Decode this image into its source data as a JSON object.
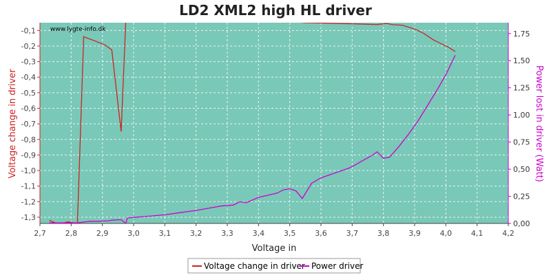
{
  "chart_data": {
    "type": "line",
    "title": "LD2 XML2 high HL driver",
    "watermark": "www.lygte-info.dk",
    "xlabel": "Voltage in",
    "ylabel_left": "Voltage change in driver",
    "ylabel_right": "Power lost in driver (Watt)",
    "xlim": [
      2.7,
      4.2
    ],
    "ylim_left": [
      -1.34,
      -0.05
    ],
    "ylim_right": [
      0.0,
      1.85
    ],
    "x_ticks": [
      "2,7",
      "2,8",
      "2,9",
      "3,0",
      "3,1",
      "3,2",
      "3,3",
      "3,4",
      "3,5",
      "3,6",
      "3,7",
      "3,8",
      "3,9",
      "4,0",
      "4,1",
      "4,2"
    ],
    "y_left_ticks": [
      "-0,1",
      "-0,2",
      "-0,3",
      "-0,4",
      "-0,5",
      "-0,6",
      "-0,7",
      "-0,8",
      "-0,9",
      "-1,0",
      "-1,1",
      "-1,2",
      "-1,3"
    ],
    "y_right_ticks": [
      "0,00",
      "0,25",
      "0,50",
      "0,75",
      "1,00",
      "1,25",
      "1,50",
      "1,75"
    ],
    "grid": true,
    "legend_placement": "bottom-center",
    "background": "#7ac8b8",
    "colors": {
      "left_axis": "#cc2222",
      "right_axis": "#cc00cc",
      "grid": "#ffffff"
    },
    "series": [
      {
        "name": "Voltage change in driver",
        "axis": "left",
        "color": "#cc2222",
        "points": [
          [
            2.73,
            -1.32
          ],
          [
            2.76,
            -1.345
          ],
          [
            2.79,
            -1.33
          ],
          [
            2.82,
            -1.34
          ],
          [
            2.84,
            -0.14
          ],
          [
            2.88,
            -0.17
          ],
          [
            2.91,
            -0.195
          ],
          [
            2.93,
            -0.225
          ],
          [
            2.96,
            -0.75
          ],
          [
            2.975,
            -0.03
          ],
          [
            3.0,
            -0.03
          ],
          [
            3.05,
            -0.032
          ],
          [
            3.1,
            -0.033
          ],
          [
            3.15,
            -0.034
          ],
          [
            3.2,
            -0.037
          ],
          [
            3.25,
            -0.038
          ],
          [
            3.3,
            -0.04
          ],
          [
            3.35,
            -0.042
          ],
          [
            3.4,
            -0.044
          ],
          [
            3.45,
            -0.046
          ],
          [
            3.48,
            -0.048
          ],
          [
            3.5,
            -0.048
          ],
          [
            3.52,
            -0.045
          ],
          [
            3.55,
            -0.05
          ],
          [
            3.6,
            -0.052
          ],
          [
            3.65,
            -0.055
          ],
          [
            3.7,
            -0.057
          ],
          [
            3.75,
            -0.06
          ],
          [
            3.78,
            -0.062
          ],
          [
            3.81,
            -0.055
          ],
          [
            3.83,
            -0.063
          ],
          [
            3.86,
            -0.066
          ],
          [
            3.9,
            -0.09
          ],
          [
            3.93,
            -0.12
          ],
          [
            3.96,
            -0.16
          ],
          [
            3.99,
            -0.19
          ],
          [
            4.01,
            -0.21
          ],
          [
            4.03,
            -0.235
          ]
        ]
      },
      {
        "name": "Power driver",
        "axis": "right",
        "color": "#cc00cc",
        "points": [
          [
            2.73,
            0.005
          ],
          [
            2.79,
            0.005
          ],
          [
            2.82,
            0.005
          ],
          [
            2.86,
            0.02
          ],
          [
            2.89,
            0.02
          ],
          [
            2.92,
            0.025
          ],
          [
            2.93,
            0.03
          ],
          [
            2.96,
            0.035
          ],
          [
            2.975,
            0.0
          ],
          [
            2.98,
            0.05
          ],
          [
            3.02,
            0.06
          ],
          [
            3.06,
            0.07
          ],
          [
            3.1,
            0.08
          ],
          [
            3.15,
            0.1
          ],
          [
            3.2,
            0.12
          ],
          [
            3.24,
            0.14
          ],
          [
            3.28,
            0.16
          ],
          [
            3.32,
            0.17
          ],
          [
            3.34,
            0.2
          ],
          [
            3.36,
            0.19
          ],
          [
            3.4,
            0.24
          ],
          [
            3.43,
            0.26
          ],
          [
            3.46,
            0.28
          ],
          [
            3.48,
            0.31
          ],
          [
            3.5,
            0.32
          ],
          [
            3.52,
            0.3
          ],
          [
            3.54,
            0.23
          ],
          [
            3.57,
            0.37
          ],
          [
            3.6,
            0.42
          ],
          [
            3.63,
            0.45
          ],
          [
            3.66,
            0.48
          ],
          [
            3.69,
            0.51
          ],
          [
            3.71,
            0.54
          ],
          [
            3.74,
            0.59
          ],
          [
            3.76,
            0.62
          ],
          [
            3.78,
            0.66
          ],
          [
            3.8,
            0.6
          ],
          [
            3.82,
            0.61
          ],
          [
            3.85,
            0.71
          ],
          [
            3.88,
            0.82
          ],
          [
            3.91,
            0.94
          ],
          [
            3.94,
            1.08
          ],
          [
            3.97,
            1.22
          ],
          [
            4.0,
            1.37
          ],
          [
            4.03,
            1.55
          ]
        ]
      }
    ]
  }
}
